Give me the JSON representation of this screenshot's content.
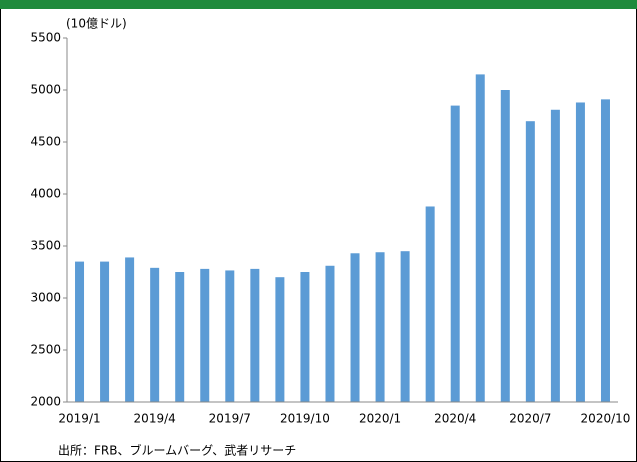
{
  "chart_data": {
    "type": "bar",
    "unit_label": "(10億ドル)",
    "source": "出所：FRB、ブルームバーグ、武者リサーチ",
    "categories": [
      "2019/1",
      null,
      null,
      "2019/4",
      null,
      null,
      "2019/7",
      null,
      null,
      "2019/10",
      null,
      null,
      "2020/1",
      null,
      null,
      "2020/4",
      null,
      null,
      "2020/7",
      null,
      null,
      "2020/10"
    ],
    "values": [
      3350,
      3350,
      3390,
      3290,
      3250,
      3280,
      3265,
      3280,
      3200,
      3250,
      3310,
      3430,
      3440,
      3450,
      3880,
      4850,
      5150,
      5000,
      4700,
      4810,
      4880,
      4910
    ],
    "color": "#5b9bd5",
    "ylim": [
      2000,
      5500
    ],
    "yticks": [
      2000,
      2500,
      3000,
      3500,
      4000,
      4500,
      5000,
      5500
    ],
    "grid": false
  }
}
